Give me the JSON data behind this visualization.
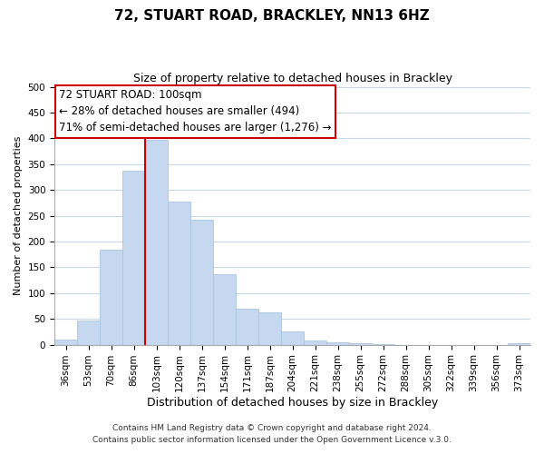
{
  "title": "72, STUART ROAD, BRACKLEY, NN13 6HZ",
  "subtitle": "Size of property relative to detached houses in Brackley",
  "xlabel": "Distribution of detached houses by size in Brackley",
  "ylabel": "Number of detached properties",
  "bar_labels": [
    "36sqm",
    "53sqm",
    "70sqm",
    "86sqm",
    "103sqm",
    "120sqm",
    "137sqm",
    "154sqm",
    "171sqm",
    "187sqm",
    "204sqm",
    "221sqm",
    "238sqm",
    "255sqm",
    "272sqm",
    "288sqm",
    "305sqm",
    "322sqm",
    "339sqm",
    "356sqm",
    "373sqm"
  ],
  "bar_values": [
    10,
    47,
    185,
    338,
    398,
    278,
    242,
    137,
    70,
    62,
    26,
    8,
    5,
    2,
    1,
    0,
    0,
    0,
    0,
    0,
    3
  ],
  "bar_color": "#c5d8f0",
  "bar_edge_color": "#a8c4e0",
  "vline_bar_index": 3,
  "vline_color": "#cc0000",
  "ylim": [
    0,
    500
  ],
  "yticks": [
    0,
    50,
    100,
    150,
    200,
    250,
    300,
    350,
    400,
    450,
    500
  ],
  "annotation_title": "72 STUART ROAD: 100sqm",
  "annotation_line1": "← 28% of detached houses are smaller (494)",
  "annotation_line2": "71% of semi-detached houses are larger (1,276) →",
  "annotation_box_color": "#ffffff",
  "annotation_box_edge": "#cc0000",
  "footer1": "Contains HM Land Registry data © Crown copyright and database right 2024.",
  "footer2": "Contains public sector information licensed under the Open Government Licence v.3.0.",
  "background_color": "#ffffff",
  "grid_color": "#c8d8e8",
  "title_fontsize": 11,
  "subtitle_fontsize": 9,
  "xlabel_fontsize": 9,
  "ylabel_fontsize": 8,
  "tick_fontsize": 7.5,
  "footer_fontsize": 6.5,
  "ann_fontsize": 8.5
}
